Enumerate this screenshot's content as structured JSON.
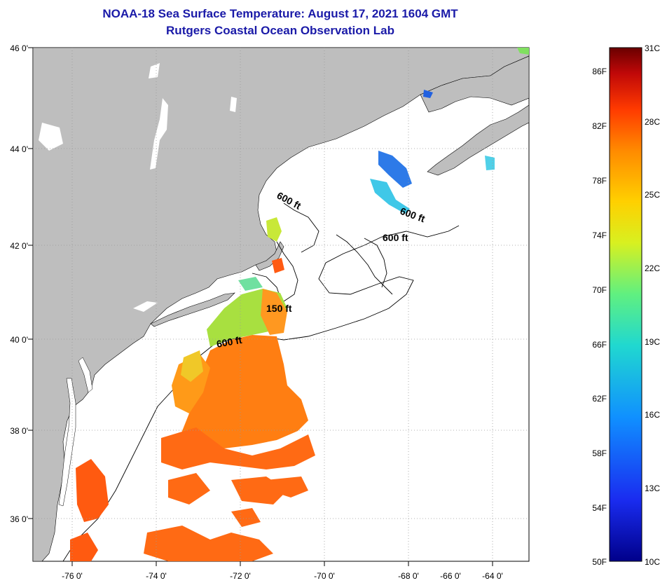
{
  "title": "NOAA-18 Sea Surface Temperature:  August 17, 2021 1604 GMT",
  "subtitle": "Rutgers Coastal Ocean Observation Lab",
  "map": {
    "lat_labels": [
      "46 0'",
      "44 0'",
      "42 0'",
      "40 0'",
      "38 0'",
      "36 0'"
    ],
    "lon_labels": [
      "-76 0'",
      "-74 0'",
      "-72 0'",
      "-70 0'",
      "-68 0'",
      "-66 0'",
      "-64 0'"
    ],
    "contour_labels": [
      "600 ft",
      "600 ft",
      "600 ft",
      "150 ft",
      "600 ft"
    ],
    "land_color": "#bebebe",
    "ocean_color": "#ffffff"
  },
  "colorbar": {
    "celsius_labels": [
      "31C",
      "28C",
      "25C",
      "22C",
      "19C",
      "16C",
      "13C",
      "10C"
    ],
    "fahrenheit_labels": [
      "86F",
      "82F",
      "78F",
      "74F",
      "70F",
      "66F",
      "62F",
      "58F",
      "54F",
      "50F"
    ],
    "colors": [
      "#7a0000",
      "#d01010",
      "#ff5a00",
      "#ffa000",
      "#f0e000",
      "#a0f040",
      "#30e0c0",
      "#10a0ff",
      "#1840e0",
      "#00008a"
    ]
  }
}
